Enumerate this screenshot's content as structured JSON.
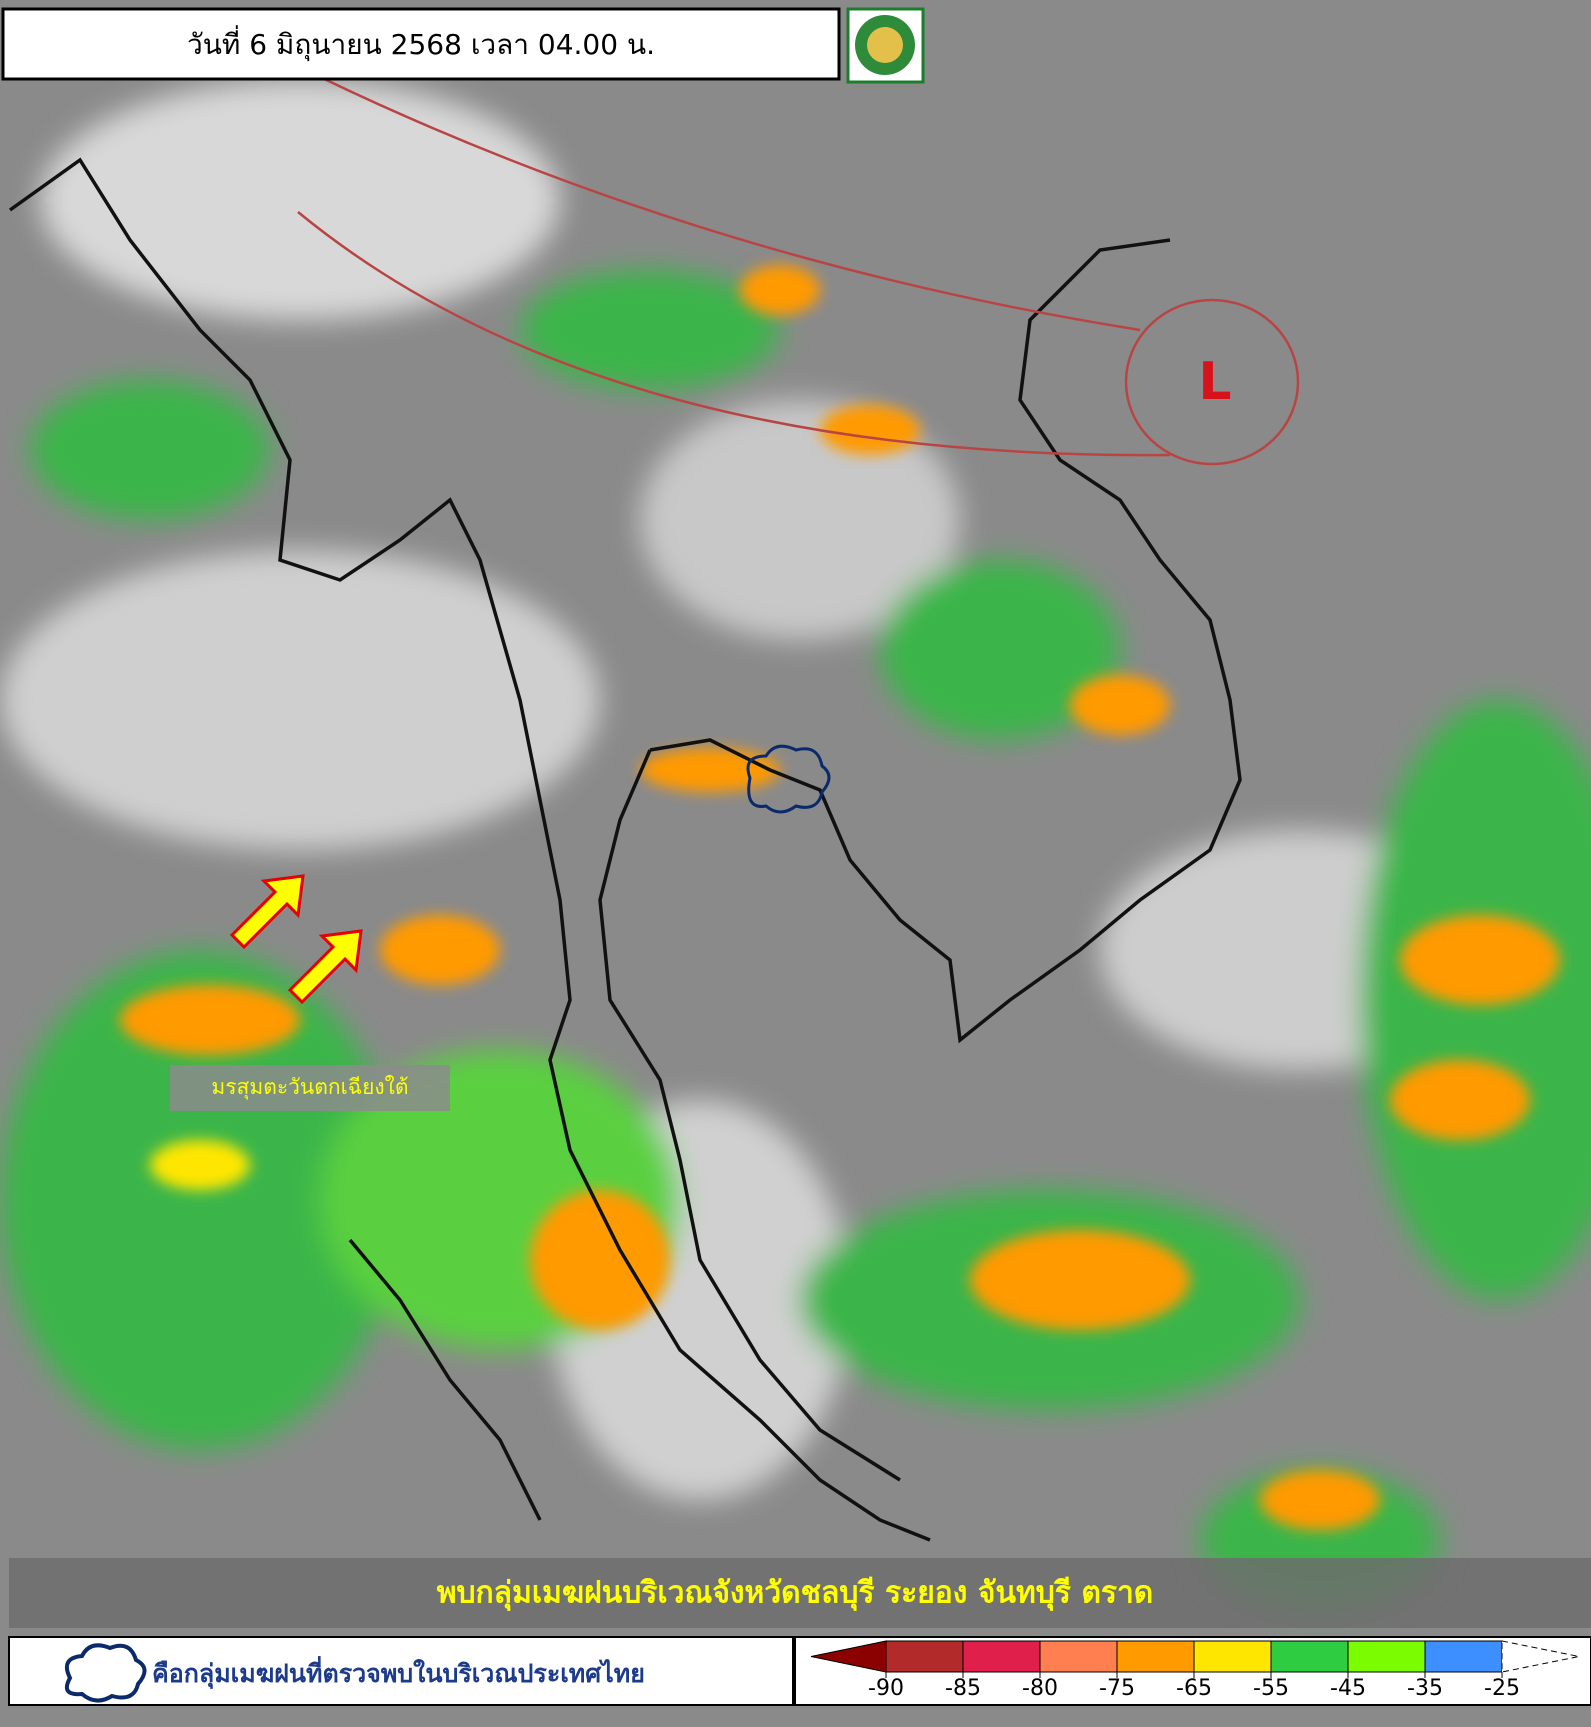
{
  "header": {
    "title": "วันที่ 6 มิถุนายน 2568 เวลา 04.00 น."
  },
  "map": {
    "low_pressure": "L",
    "monsoon_label": "มรสุมตะวันตกเฉียงใต้",
    "banner": "พบกลุ่มเมฆฝนบริเวณจังหวัดชลบุรี ระยอง จันทบุรี ตราด"
  },
  "legend": {
    "cloud_note": "คือกลุ่มเมฆฝนที่ตรวจพบในบริเวณประเทศไทย",
    "scale_ticks": [
      -90,
      -85,
      -80,
      -75,
      -65,
      -55,
      -45,
      -35,
      -25
    ],
    "scale_colors": [
      "#8b0000",
      "#b22a2a",
      "#e0204a",
      "#ff7f50",
      "#ff9a00",
      "#ffe600",
      "#2ecc40",
      "#7cfc00",
      "#3d8eff",
      "#ffffff"
    ]
  }
}
